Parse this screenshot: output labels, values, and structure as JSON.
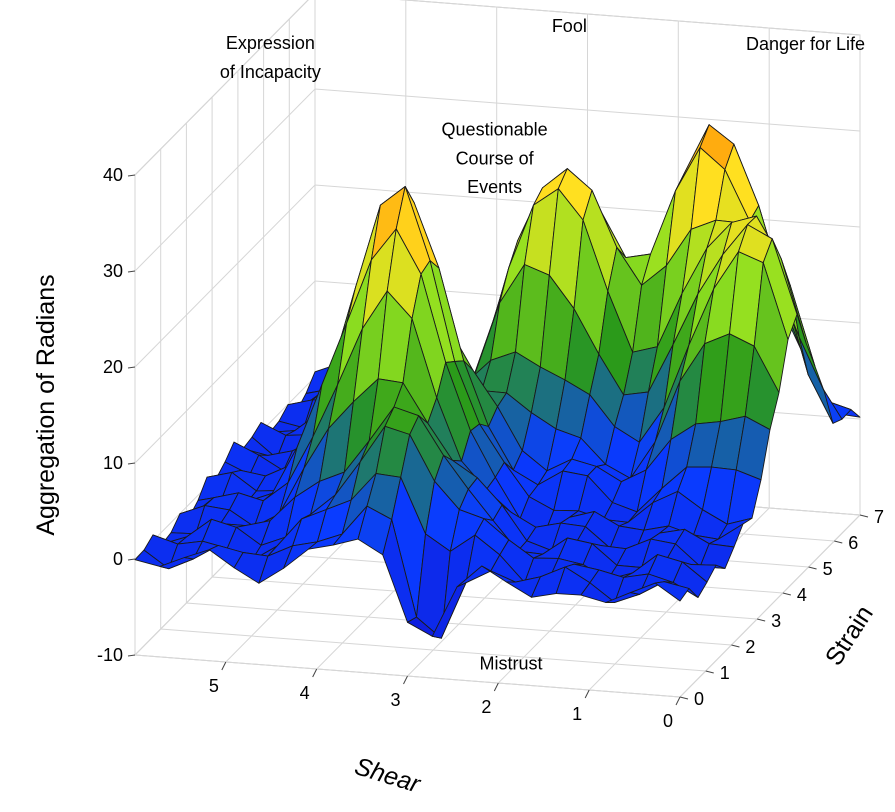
{
  "chart_data": {
    "type": "surface3d",
    "xlabel": "Shear",
    "ylabel": "Strain",
    "zlabel": "Aggregation of Radians",
    "xlim": [
      0,
      6
    ],
    "ylim": [
      0,
      7
    ],
    "zlim": [
      -10,
      40
    ],
    "x_ticks": [
      "0",
      "1",
      "2",
      "3",
      "4",
      "5"
    ],
    "y_ticks": [
      "0",
      "1",
      "2",
      "3",
      "4",
      "5",
      "6",
      "7"
    ],
    "z_ticks": [
      "-10",
      "0",
      "10",
      "20",
      "30",
      "40"
    ],
    "grid": true,
    "colormap": [
      "#1010d0",
      "#0a3cff",
      "#2a9a1a",
      "#90e020",
      "#ffe020",
      "#ff8000"
    ],
    "annotations": [
      {
        "text": "Expression",
        "x": 5.5,
        "y": 3.5,
        "z": 44
      },
      {
        "text": "of Incapacity",
        "x": 5.5,
        "y": 3.5,
        "z": 41
      },
      {
        "text": "Fool",
        "x": 3.2,
        "y": 7,
        "z": 38
      },
      {
        "text": "Danger for Life",
        "x": 0.6,
        "y": 7,
        "z": 38
      },
      {
        "text": "Questionable",
        "x": 3.4,
        "y": 4.8,
        "z": 33
      },
      {
        "text": "Course of",
        "x": 3.4,
        "y": 4.8,
        "z": 30
      },
      {
        "text": "Events",
        "x": 3.4,
        "y": 4.8,
        "z": 27
      },
      {
        "text": "Mistrust",
        "x": 2.2,
        "y": 1.2,
        "z": -12
      }
    ],
    "peaks": [
      {
        "x": 3.9,
        "y": 2.8,
        "z": 32
      },
      {
        "x": 2.8,
        "y": 5.2,
        "z": 30
      },
      {
        "x": 1.3,
        "y": 6.0,
        "z": 31
      },
      {
        "x": 0.5,
        "y": 4.5,
        "z": 26
      },
      {
        "x": 3.3,
        "y": 1.0,
        "z": 11
      }
    ],
    "troughs": [
      {
        "x": 2.9,
        "y": 0.3,
        "z": -10
      },
      {
        "x": 2.2,
        "y": 3.4,
        "z": 6
      }
    ]
  }
}
